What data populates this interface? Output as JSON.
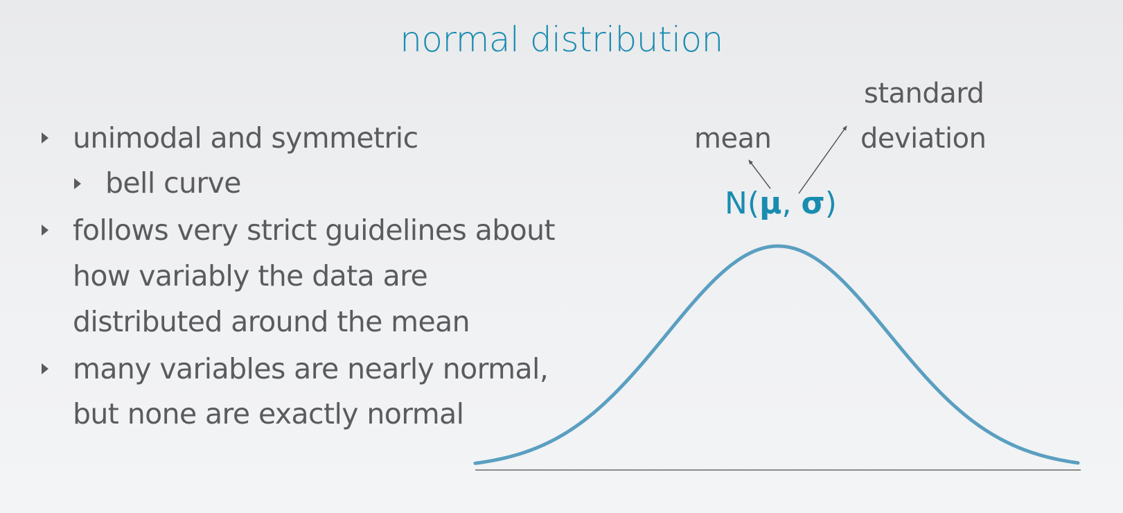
{
  "slide": {
    "title": "normal distribution",
    "bullets": [
      {
        "level": 1,
        "lines": [
          "unimodal and symmetric"
        ]
      },
      {
        "level": 2,
        "lines": [
          "bell curve"
        ]
      },
      {
        "level": 1,
        "lines": [
          "follows very strict guidelines about",
          "how variably the data are",
          "distributed around the mean"
        ]
      },
      {
        "level": 1,
        "lines": [
          "many variables are nearly normal,",
          "but none are exactly normal"
        ]
      }
    ]
  },
  "figure": {
    "labels": {
      "mean": "mean",
      "sd_line1": "standard",
      "sd_line2": "deviation"
    },
    "notation": {
      "prefix": "N(",
      "mu": "μ",
      "sep": ", ",
      "sigma": "σ",
      "suffix": ")"
    },
    "colors": {
      "title": "#1a8cb0",
      "curve": "#5a9fc1",
      "baseline": "#8a8a8a",
      "text": "#5a5b5d"
    }
  }
}
